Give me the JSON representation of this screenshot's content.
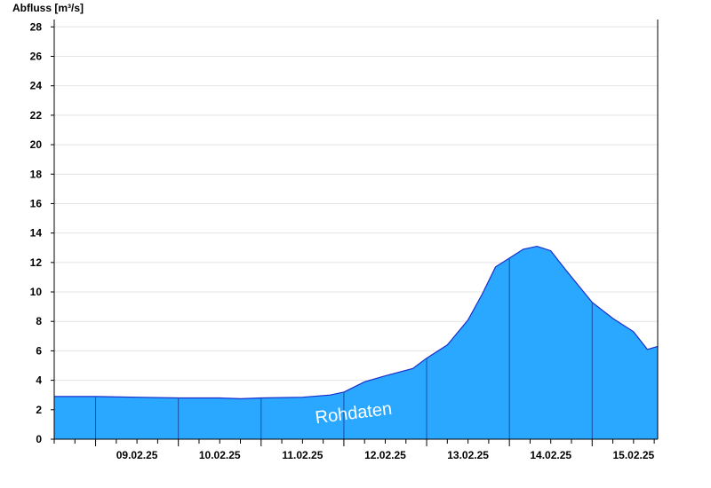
{
  "chart_data": {
    "type": "area",
    "ylabel": "Abfluss [m³/s]",
    "xlabel": "",
    "title": "",
    "ylim": [
      0,
      28.5
    ],
    "yticks": [
      0,
      2,
      4,
      6,
      8,
      10,
      12,
      14,
      16,
      18,
      20,
      22,
      24,
      26,
      28
    ],
    "x_range": [
      "2025-02-08T12:00",
      "2025-02-15T19:00"
    ],
    "x_tick_labels": [
      "09.02.25",
      "10.02.25",
      "11.02.25",
      "12.02.25",
      "13.02.25",
      "14.02.25",
      "15.02.25"
    ],
    "annotation": "Rohdaten",
    "fill_color": "#2aa8ff",
    "line_color": "#1a2ecc",
    "grid": true,
    "series": [
      {
        "x": [
          "2025-02-08T12:00",
          "2025-02-09T00:00",
          "2025-02-09T12:00",
          "2025-02-10T00:00",
          "2025-02-10T12:00",
          "2025-02-10T18:00",
          "2025-02-11T00:00",
          "2025-02-11T12:00",
          "2025-02-11T20:00",
          "2025-02-12T00:00",
          "2025-02-12T06:00",
          "2025-02-12T12:00",
          "2025-02-12T20:00",
          "2025-02-13T00:00",
          "2025-02-13T06:00",
          "2025-02-13T12:00",
          "2025-02-13T16:00",
          "2025-02-13T20:00",
          "2025-02-14T00:00",
          "2025-02-14T04:00",
          "2025-02-14T08:00",
          "2025-02-14T12:00",
          "2025-02-14T16:00",
          "2025-02-15T00:00",
          "2025-02-15T06:00",
          "2025-02-15T12:00",
          "2025-02-15T16:00",
          "2025-02-15T19:00"
        ],
        "values": [
          2.9,
          2.9,
          2.85,
          2.8,
          2.8,
          2.75,
          2.8,
          2.85,
          3.0,
          3.2,
          3.9,
          4.3,
          4.8,
          5.5,
          6.4,
          8.1,
          9.8,
          11.7,
          12.3,
          12.9,
          13.1,
          12.8,
          11.6,
          9.3,
          8.2,
          7.3,
          6.1,
          6.3
        ]
      }
    ]
  }
}
